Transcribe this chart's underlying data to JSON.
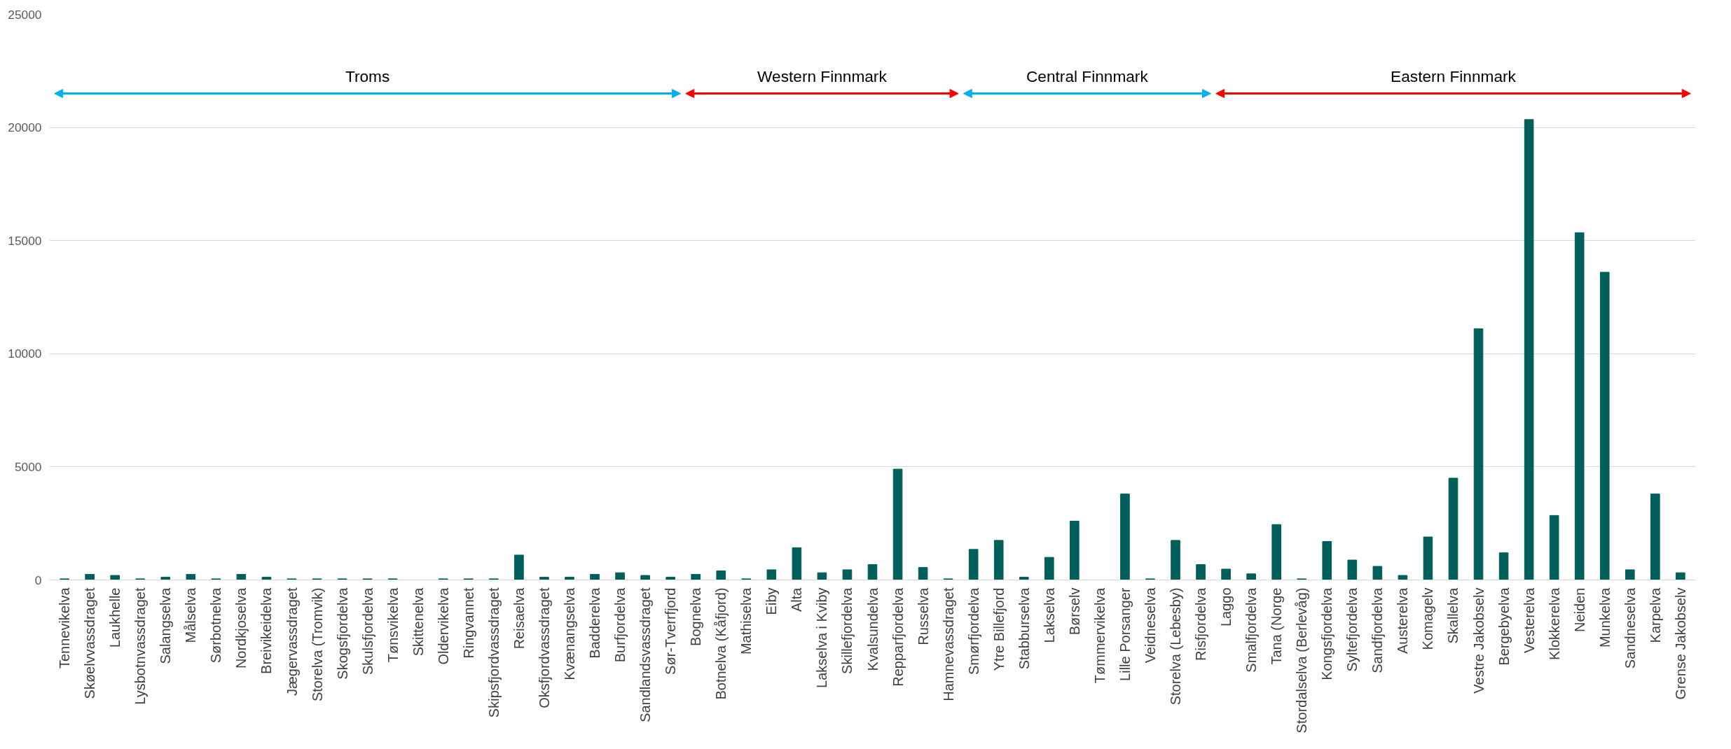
{
  "chart_data": {
    "type": "bar",
    "categories": [
      "Tennevikelva",
      "Skøelvvassdraget",
      "Laukhelle",
      "Lysbotnvassdraget",
      "Salangselva",
      "Målselva",
      "Sørbotnelva",
      "Nordkjoselva",
      "Breivikeidelva",
      "Jægervassdraget",
      "Storelva (Tromvik)",
      "Skogsfjordelva",
      "Skulsfjordelva",
      "Tønsvikelva",
      "Skittenelva",
      "Oldervikelva",
      "Ringvannet",
      "Skipsfjordvassdraget",
      "Reisaelva",
      "Oksfjordvassdraget",
      "Kvænangselva",
      "Badderelva",
      "Burfjordelva",
      "Sandlandsvassdraget",
      "Sør-Tverrfjord",
      "Bognelva",
      "Botnelva (Kåfjord)",
      "Mathiselva",
      "Eiby",
      "Alta",
      "Lakselva i Kviby",
      "Skillefjordelva",
      "Kvalsundelva",
      "Repparfjordelva",
      "Russelva",
      "Hamnevassdraget",
      "Smørfjordelva",
      "Ytre Billefjord",
      "Stabburselva",
      "Lakselva",
      "Børselv",
      "Tømmervikelva",
      "Lille Porsanger",
      "Veidneselva",
      "Storelva (Lebesby)",
      "Risfjordelva",
      "Laggo",
      "Smalfjordelva",
      "Tana (Norge",
      "Stordalselva (Berlevåg)",
      "Kongsfjordelva",
      "Syltefjordelva",
      "Sandfjordelva",
      "Austerelva",
      "Komagelv",
      "Skallelva",
      "Vestre Jakobselv",
      "Bergebyelva",
      "Vesterelva",
      "Klokkerelva",
      "Neiden",
      "Munkelva",
      "Sandneselva",
      "Karpelva",
      "Grense Jakobselv"
    ],
    "values": [
      50,
      250,
      200,
      50,
      120,
      250,
      50,
      250,
      120,
      50,
      50,
      50,
      50,
      50,
      0,
      50,
      50,
      50,
      1100,
      120,
      120,
      250,
      320,
      200,
      120,
      250,
      400,
      50,
      450,
      1420,
      320,
      450,
      680,
      4900,
      550,
      50,
      1350,
      1750,
      120,
      1000,
      2600,
      0,
      3800,
      50,
      1750,
      680,
      480,
      270,
      2450,
      50,
      1700,
      880,
      600,
      200,
      1900,
      4500,
      11100,
      1200,
      20350,
      2850,
      15350,
      13600,
      450,
      3800,
      320
    ],
    "color": "#005f5a",
    "ylim": [
      0,
      25000
    ],
    "yticks": [
      0,
      5000,
      10000,
      15000,
      20000,
      25000
    ],
    "grid": "y",
    "annotations": [
      "Troms",
      "Western Finnmark",
      "Central Finnmark",
      "Eastern Finnmark"
    ]
  }
}
